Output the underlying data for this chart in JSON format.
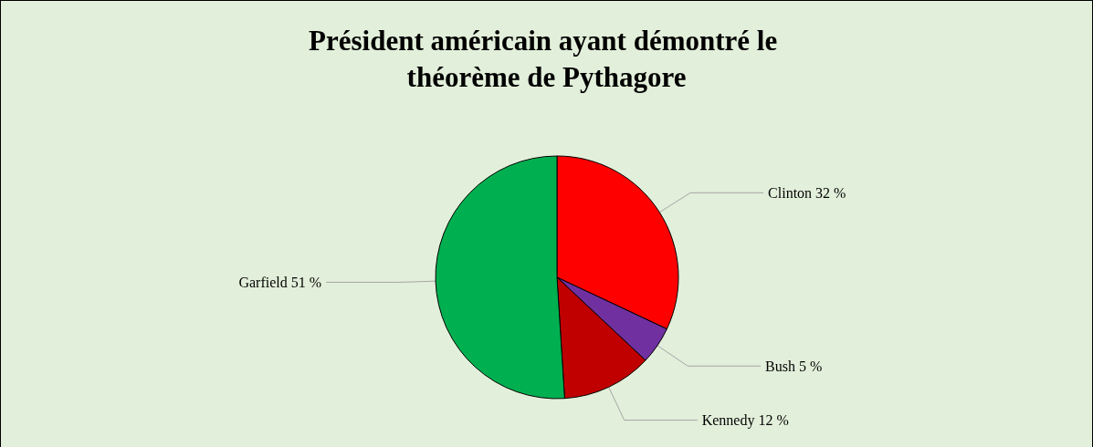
{
  "chart_data": {
    "type": "pie",
    "title": "Président américain ayant démontré le théorème de Pythagore",
    "categories": [
      "Clinton",
      "Bush",
      "Kennedy",
      "Garfield"
    ],
    "values": [
      32,
      5,
      12,
      51
    ],
    "value_labels": [
      "32 %",
      "5 %",
      "12 %",
      "51 %"
    ],
    "colors": [
      "#ff0000",
      "#7030a0",
      "#c00000",
      "#00b050"
    ],
    "legend": false
  }
}
